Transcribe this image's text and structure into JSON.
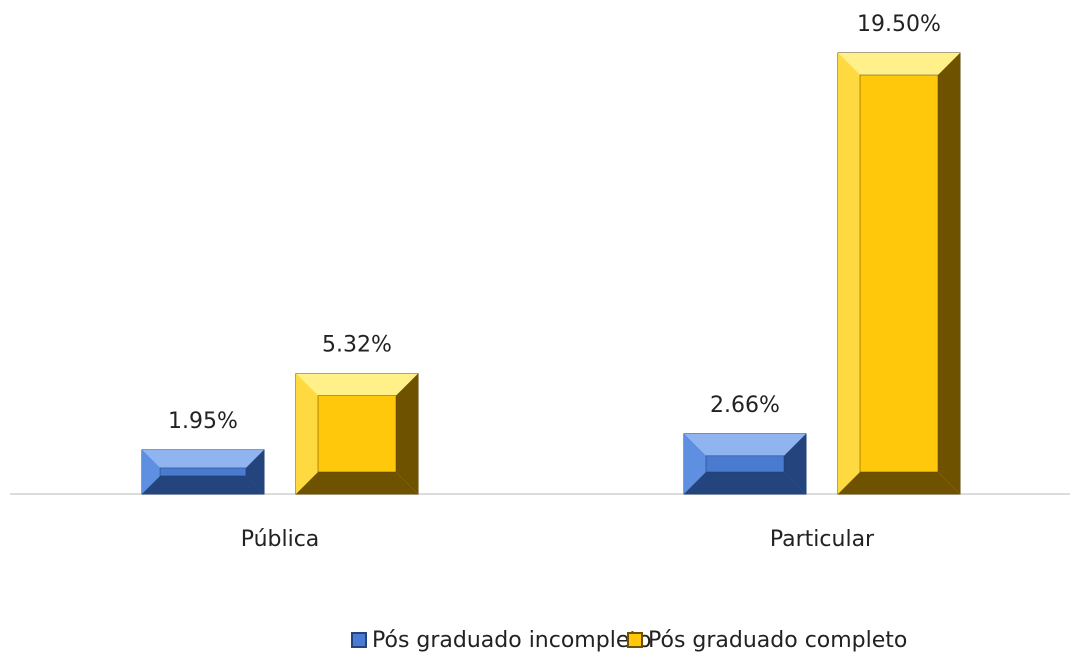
{
  "chart_data": {
    "type": "bar",
    "categories": [
      "Pública",
      "Particular"
    ],
    "series": [
      {
        "name": "Pós graduado incompleto",
        "color": "#4472c4",
        "values": [
          1.95,
          2.66
        ],
        "value_labels": [
          "1.95%",
          "2.66%"
        ]
      },
      {
        "name": "Pós graduado completo",
        "color": "#ffc000",
        "values": [
          5.32,
          19.5
        ],
        "value_labels": [
          "5.32%",
          "19.50%"
        ]
      }
    ]
  }
}
